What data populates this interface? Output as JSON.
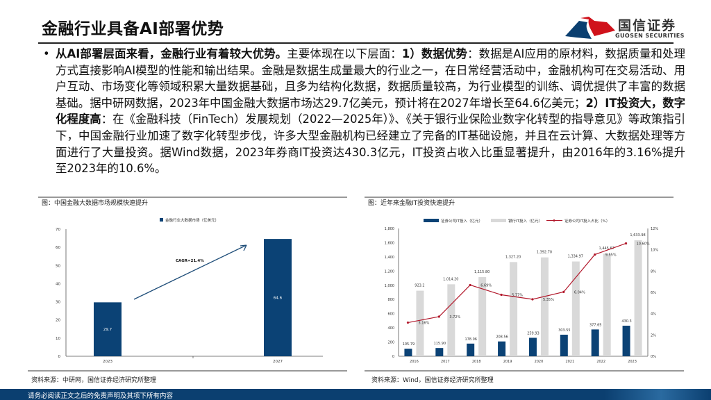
{
  "title": "金融行业具备AI部署优势",
  "logo": {
    "cn": "国信证券",
    "en": "GUOSEN SECURITIES",
    "colors": [
      "#d0121b",
      "#0b3f70"
    ]
  },
  "bullet": "•",
  "paragraph": [
    {
      "text": "从AI部署层面来看，金融行业有着较大优势。",
      "bold": true
    },
    {
      "text": "主要体现在以下层面：",
      "bold": false
    },
    {
      "text": "1）数据优势",
      "bold": true
    },
    {
      "text": "：数据是AI应用的原材料，数据质量和处理方式直接影响AI模型的性能和输出结果。金融是数据生成量最大的行业之一，在日常经营活动中，金融机构可在交易活动、用户互动、市场变化等领域积累大量数据基础，且多为结构化数据，数据质量较高，为行业模型的训练、调优提供了丰富的数据基础。据中研网数据，2023年中国金融大数据市场达29.7亿美元，预计将在2027年增长至64.6亿美元；",
      "bold": false
    },
    {
      "text": "2）IT投资大，数字化程度高",
      "bold": true
    },
    {
      "text": "：在《金融科技（FinTech）发展规划（2022—2025年）》、《关于银行业保险业数字化转型的指导意见》等政策指引下，中国金融行业加速了数字化转型步伐，许多大型金融机构已经建立了完备的IT基础设施，并且在云计算、大数据处理等方面进行了大量投资。据Wind数据，2023年券商IT投资达430.3亿元，IT投资占收入比重显著提升，由2016年的3.16%提升至2023年的10.6%。",
      "bold": false
    }
  ],
  "left_panel": {
    "caption": "图：中国金融大数据市场规模快速提升",
    "source": "资料来源：中研网，国信证券经济研究所整理"
  },
  "right_panel": {
    "caption": "图：近年来金融IT投资快速提升",
    "source": "资料来源：Wind，国信证券经济研究所整理"
  },
  "footer": "请务必阅读正文之后的免责声明及其项下所有内容",
  "chart_data": [
    {
      "type": "bar",
      "categories": [
        "2023",
        "2027"
      ],
      "series": [
        {
          "name": "金融行业大数据市场（亿美元）",
          "values": [
            29.7,
            64.6
          ],
          "color": "#0b4275"
        }
      ],
      "data_labels": [
        "29.7",
        "64.6"
      ],
      "annotation": "CAGR=21.4%",
      "ylim": [
        0,
        70
      ],
      "yticks": [
        0,
        10,
        20,
        30,
        40,
        50,
        60,
        70
      ],
      "legend": "top",
      "grid": false
    },
    {
      "type": "bar+line",
      "categories": [
        "2016",
        "2017",
        "2018",
        "2019",
        "2020",
        "2021",
        "2022",
        "2023"
      ],
      "series": [
        {
          "name": "证券公司IT投入（亿元）",
          "axis": "left",
          "values": [
            105.79,
            115.9,
            178.06,
            208.56,
            259.93,
            303.55,
            377.65,
            430.3
          ],
          "labels": [
            "105.79",
            "115.90",
            "178.06",
            "208.56",
            "259.93",
            "303.55",
            "377.65",
            "430.3"
          ],
          "color": "#0b4275"
        },
        {
          "name": "银行IT投入（亿元）",
          "axis": "left",
          "values": [
            923.2,
            1014.2,
            1115.8,
            1327.2,
            1392.7,
            1334.97,
            1445.67,
            1633.98
          ],
          "labels": [
            "923.2",
            "1,014.20",
            "1,115.80",
            "1,327.20",
            "1,392.70",
            "1,334.97",
            "1,445.67",
            "1,633.98"
          ],
          "color": "#d9d9d9"
        },
        {
          "name": "证券公司IT投入占比（%）",
          "axis": "right",
          "type": "line",
          "values": [
            3.16,
            3.72,
            6.69,
            5.77,
            5.35,
            6.04,
            9.55,
            10.6
          ],
          "labels": [
            "3.16%",
            "3.72%",
            "6.69%",
            "5.77%",
            "5.35%",
            "6.04%",
            "9.55%",
            "10.60%"
          ],
          "color": "#b2182b"
        }
      ],
      "ylim": [
        0,
        1800
      ],
      "yticks": [
        "0",
        "200",
        "400",
        "600",
        "800",
        "1,000",
        "1,200",
        "1,400",
        "1,600",
        "1,800"
      ],
      "y2lim": [
        0,
        12
      ],
      "y2ticks": [
        "0%",
        "2%",
        "4%",
        "6%",
        "8%",
        "10%",
        "12%"
      ],
      "legend": "top",
      "grid": false
    }
  ]
}
